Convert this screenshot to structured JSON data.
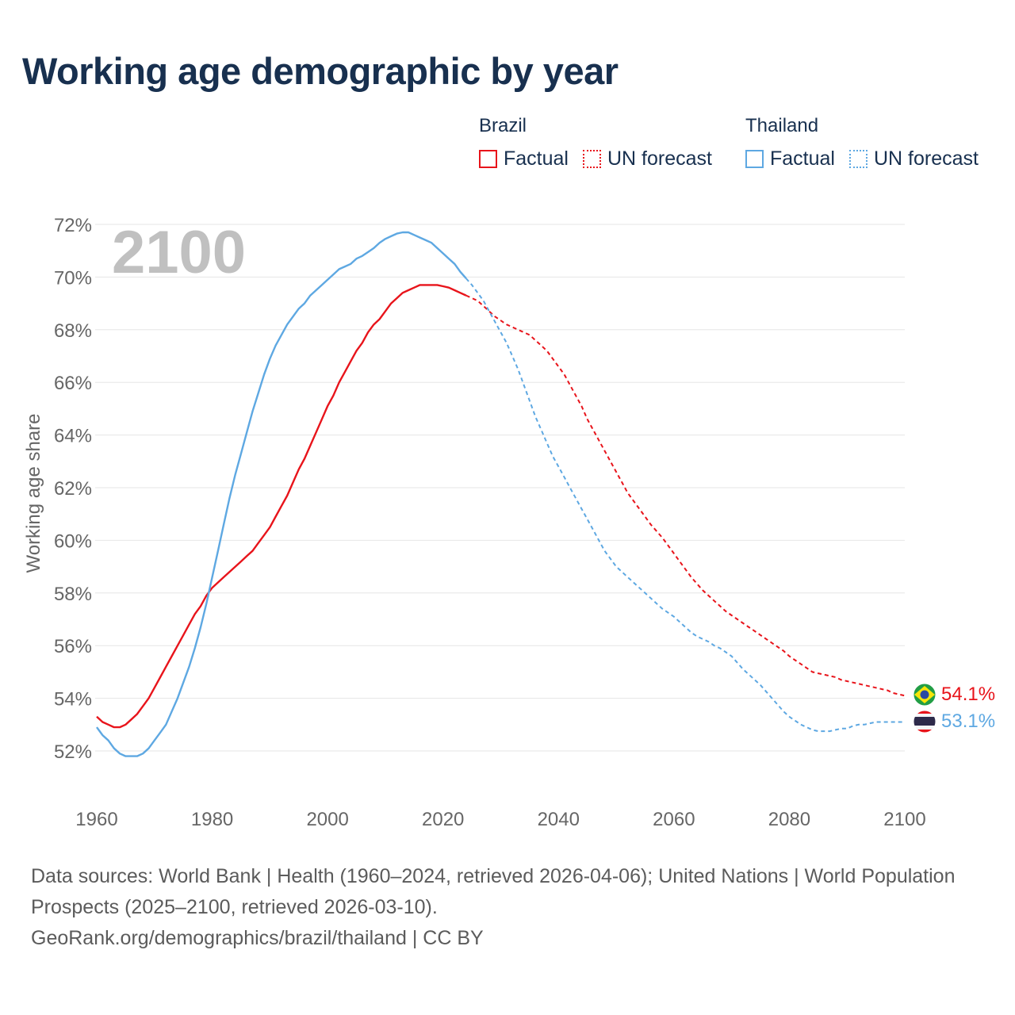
{
  "title": "Working age demographic by year",
  "legend": {
    "groups": [
      {
        "country": "Brazil",
        "factual_label": "Factual",
        "forecast_label": "UN forecast",
        "color": "#e8141b"
      },
      {
        "country": "Thailand",
        "factual_label": "Factual",
        "forecast_label": "UN forecast",
        "color": "#5ea8e2"
      }
    ]
  },
  "chart_data": {
    "type": "line",
    "title": "Working age demographic by year",
    "ylabel": "Working age share",
    "xlabel": "",
    "xlim": [
      1960,
      2100
    ],
    "ylim": [
      51,
      73
    ],
    "x_ticks": [
      1960,
      1980,
      2000,
      2020,
      2040,
      2060,
      2080,
      2100
    ],
    "y_ticks": [
      52,
      54,
      56,
      58,
      60,
      62,
      64,
      66,
      68,
      70,
      72
    ],
    "y_tick_labels": [
      "52%",
      "54%",
      "56%",
      "58%",
      "60%",
      "62%",
      "64%",
      "66%",
      "68%",
      "70%",
      "72%"
    ],
    "x_tick_labels": [
      "1960",
      "1980",
      "2000",
      "2020",
      "2040",
      "2060",
      "2080",
      "2100"
    ],
    "year_watermark": "2100",
    "grid": true,
    "factual_range": [
      1960,
      2024
    ],
    "forecast_range": [
      2025,
      2100
    ],
    "series": [
      {
        "name": "Brazil",
        "color": "#e8141b",
        "end_label": "54.1%",
        "flag": "brazil-flag",
        "points": [
          [
            1960,
            53.3
          ],
          [
            1961,
            53.1
          ],
          [
            1962,
            53.0
          ],
          [
            1963,
            52.9
          ],
          [
            1964,
            52.9
          ],
          [
            1965,
            53.0
          ],
          [
            1966,
            53.2
          ],
          [
            1967,
            53.4
          ],
          [
            1968,
            53.7
          ],
          [
            1969,
            54.0
          ],
          [
            1970,
            54.4
          ],
          [
            1971,
            54.8
          ],
          [
            1972,
            55.2
          ],
          [
            1973,
            55.6
          ],
          [
            1974,
            56.0
          ],
          [
            1975,
            56.4
          ],
          [
            1976,
            56.8
          ],
          [
            1977,
            57.2
          ],
          [
            1978,
            57.5
          ],
          [
            1979,
            57.9
          ],
          [
            1980,
            58.2
          ],
          [
            1981,
            58.4
          ],
          [
            1982,
            58.6
          ],
          [
            1983,
            58.8
          ],
          [
            1984,
            59.0
          ],
          [
            1985,
            59.2
          ],
          [
            1986,
            59.4
          ],
          [
            1987,
            59.6
          ],
          [
            1988,
            59.9
          ],
          [
            1989,
            60.2
          ],
          [
            1990,
            60.5
          ],
          [
            1991,
            60.9
          ],
          [
            1992,
            61.3
          ],
          [
            1993,
            61.7
          ],
          [
            1994,
            62.2
          ],
          [
            1995,
            62.7
          ],
          [
            1996,
            63.1
          ],
          [
            1997,
            63.6
          ],
          [
            1998,
            64.1
          ],
          [
            1999,
            64.6
          ],
          [
            2000,
            65.1
          ],
          [
            2001,
            65.5
          ],
          [
            2002,
            66.0
          ],
          [
            2003,
            66.4
          ],
          [
            2004,
            66.8
          ],
          [
            2005,
            67.2
          ],
          [
            2006,
            67.5
          ],
          [
            2007,
            67.9
          ],
          [
            2008,
            68.2
          ],
          [
            2009,
            68.4
          ],
          [
            2010,
            68.7
          ],
          [
            2011,
            69.0
          ],
          [
            2012,
            69.2
          ],
          [
            2013,
            69.4
          ],
          [
            2014,
            69.5
          ],
          [
            2015,
            69.6
          ],
          [
            2016,
            69.7
          ],
          [
            2017,
            69.7
          ],
          [
            2018,
            69.7
          ],
          [
            2019,
            69.7
          ],
          [
            2020,
            69.65
          ],
          [
            2021,
            69.6
          ],
          [
            2022,
            69.5
          ],
          [
            2023,
            69.4
          ],
          [
            2024,
            69.3
          ],
          [
            2025,
            69.2
          ],
          [
            2026,
            69.1
          ],
          [
            2027,
            68.9
          ],
          [
            2028,
            68.7
          ],
          [
            2029,
            68.5
          ],
          [
            2030,
            68.35
          ],
          [
            2031,
            68.2
          ],
          [
            2032,
            68.1
          ],
          [
            2033,
            68.0
          ],
          [
            2034,
            67.9
          ],
          [
            2035,
            67.8
          ],
          [
            2036,
            67.6
          ],
          [
            2037,
            67.4
          ],
          [
            2038,
            67.2
          ],
          [
            2039,
            66.9
          ],
          [
            2040,
            66.6
          ],
          [
            2041,
            66.3
          ],
          [
            2042,
            65.9
          ],
          [
            2043,
            65.5
          ],
          [
            2044,
            65.1
          ],
          [
            2045,
            64.6
          ],
          [
            2046,
            64.2
          ],
          [
            2047,
            63.8
          ],
          [
            2048,
            63.4
          ],
          [
            2049,
            63.0
          ],
          [
            2050,
            62.6
          ],
          [
            2051,
            62.2
          ],
          [
            2052,
            61.8
          ],
          [
            2053,
            61.5
          ],
          [
            2054,
            61.2
          ],
          [
            2055,
            60.9
          ],
          [
            2056,
            60.6
          ],
          [
            2057,
            60.35
          ],
          [
            2058,
            60.1
          ],
          [
            2059,
            59.8
          ],
          [
            2060,
            59.5
          ],
          [
            2061,
            59.2
          ],
          [
            2062,
            58.9
          ],
          [
            2063,
            58.6
          ],
          [
            2064,
            58.35
          ],
          [
            2065,
            58.1
          ],
          [
            2066,
            57.9
          ],
          [
            2067,
            57.7
          ],
          [
            2068,
            57.5
          ],
          [
            2069,
            57.3
          ],
          [
            2070,
            57.15
          ],
          [
            2071,
            57.0
          ],
          [
            2072,
            56.85
          ],
          [
            2073,
            56.7
          ],
          [
            2074,
            56.55
          ],
          [
            2075,
            56.4
          ],
          [
            2076,
            56.25
          ],
          [
            2077,
            56.1
          ],
          [
            2078,
            55.95
          ],
          [
            2079,
            55.8
          ],
          [
            2080,
            55.6
          ],
          [
            2081,
            55.45
          ],
          [
            2082,
            55.3
          ],
          [
            2083,
            55.15
          ],
          [
            2084,
            55.0
          ],
          [
            2085,
            54.95
          ],
          [
            2086,
            54.9
          ],
          [
            2087,
            54.85
          ],
          [
            2088,
            54.8
          ],
          [
            2089,
            54.7
          ],
          [
            2090,
            54.65
          ],
          [
            2091,
            54.6
          ],
          [
            2092,
            54.55
          ],
          [
            2093,
            54.5
          ],
          [
            2094,
            54.45
          ],
          [
            2095,
            54.4
          ],
          [
            2096,
            54.35
          ],
          [
            2097,
            54.3
          ],
          [
            2098,
            54.2
          ],
          [
            2099,
            54.15
          ],
          [
            2100,
            54.1
          ]
        ]
      },
      {
        "name": "Thailand",
        "color": "#5ea8e2",
        "end_label": "53.1%",
        "flag": "thailand-flag",
        "points": [
          [
            1960,
            52.9
          ],
          [
            1961,
            52.6
          ],
          [
            1962,
            52.4
          ],
          [
            1963,
            52.1
          ],
          [
            1964,
            51.9
          ],
          [
            1965,
            51.8
          ],
          [
            1966,
            51.8
          ],
          [
            1967,
            51.8
          ],
          [
            1968,
            51.9
          ],
          [
            1969,
            52.1
          ],
          [
            1970,
            52.4
          ],
          [
            1971,
            52.7
          ],
          [
            1972,
            53.0
          ],
          [
            1973,
            53.5
          ],
          [
            1974,
            54.0
          ],
          [
            1975,
            54.6
          ],
          [
            1976,
            55.2
          ],
          [
            1977,
            55.9
          ],
          [
            1978,
            56.7
          ],
          [
            1979,
            57.6
          ],
          [
            1980,
            58.6
          ],
          [
            1981,
            59.6
          ],
          [
            1982,
            60.6
          ],
          [
            1983,
            61.6
          ],
          [
            1984,
            62.5
          ],
          [
            1985,
            63.3
          ],
          [
            1986,
            64.1
          ],
          [
            1987,
            64.9
          ],
          [
            1988,
            65.6
          ],
          [
            1989,
            66.3
          ],
          [
            1990,
            66.9
          ],
          [
            1991,
            67.4
          ],
          [
            1992,
            67.8
          ],
          [
            1993,
            68.2
          ],
          [
            1994,
            68.5
          ],
          [
            1995,
            68.8
          ],
          [
            1996,
            69.0
          ],
          [
            1997,
            69.3
          ],
          [
            1998,
            69.5
          ],
          [
            1999,
            69.7
          ],
          [
            2000,
            69.9
          ],
          [
            2001,
            70.1
          ],
          [
            2002,
            70.3
          ],
          [
            2003,
            70.4
          ],
          [
            2004,
            70.5
          ],
          [
            2005,
            70.7
          ],
          [
            2006,
            70.8
          ],
          [
            2007,
            70.95
          ],
          [
            2008,
            71.1
          ],
          [
            2009,
            71.3
          ],
          [
            2010,
            71.45
          ],
          [
            2011,
            71.55
          ],
          [
            2012,
            71.65
          ],
          [
            2013,
            71.7
          ],
          [
            2014,
            71.7
          ],
          [
            2015,
            71.6
          ],
          [
            2016,
            71.5
          ],
          [
            2017,
            71.4
          ],
          [
            2018,
            71.3
          ],
          [
            2019,
            71.1
          ],
          [
            2020,
            70.9
          ],
          [
            2021,
            70.7
          ],
          [
            2022,
            70.5
          ],
          [
            2023,
            70.2
          ],
          [
            2024,
            69.95
          ],
          [
            2025,
            69.7
          ],
          [
            2026,
            69.4
          ],
          [
            2027,
            69.1
          ],
          [
            2028,
            68.7
          ],
          [
            2029,
            68.3
          ],
          [
            2030,
            67.9
          ],
          [
            2031,
            67.5
          ],
          [
            2032,
            67.0
          ],
          [
            2033,
            66.5
          ],
          [
            2034,
            65.9
          ],
          [
            2035,
            65.3
          ],
          [
            2036,
            64.7
          ],
          [
            2037,
            64.2
          ],
          [
            2038,
            63.7
          ],
          [
            2039,
            63.2
          ],
          [
            2040,
            62.8
          ],
          [
            2041,
            62.4
          ],
          [
            2042,
            62.0
          ],
          [
            2043,
            61.6
          ],
          [
            2044,
            61.2
          ],
          [
            2045,
            60.8
          ],
          [
            2046,
            60.4
          ],
          [
            2047,
            60.0
          ],
          [
            2048,
            59.6
          ],
          [
            2049,
            59.3
          ],
          [
            2050,
            59.0
          ],
          [
            2051,
            58.8
          ],
          [
            2052,
            58.6
          ],
          [
            2053,
            58.4
          ],
          [
            2054,
            58.2
          ],
          [
            2055,
            58.0
          ],
          [
            2056,
            57.8
          ],
          [
            2057,
            57.6
          ],
          [
            2058,
            57.4
          ],
          [
            2059,
            57.25
          ],
          [
            2060,
            57.1
          ],
          [
            2061,
            56.9
          ],
          [
            2062,
            56.7
          ],
          [
            2063,
            56.5
          ],
          [
            2064,
            56.35
          ],
          [
            2065,
            56.25
          ],
          [
            2066,
            56.15
          ],
          [
            2067,
            56.0
          ],
          [
            2068,
            55.9
          ],
          [
            2069,
            55.75
          ],
          [
            2070,
            55.6
          ],
          [
            2071,
            55.35
          ],
          [
            2072,
            55.1
          ],
          [
            2073,
            54.9
          ],
          [
            2074,
            54.7
          ],
          [
            2075,
            54.5
          ],
          [
            2076,
            54.25
          ],
          [
            2077,
            54.0
          ],
          [
            2078,
            53.75
          ],
          [
            2079,
            53.5
          ],
          [
            2080,
            53.3
          ],
          [
            2081,
            53.15
          ],
          [
            2082,
            53.0
          ],
          [
            2083,
            52.9
          ],
          [
            2084,
            52.8
          ],
          [
            2085,
            52.75
          ],
          [
            2086,
            52.75
          ],
          [
            2087,
            52.75
          ],
          [
            2088,
            52.8
          ],
          [
            2089,
            52.85
          ],
          [
            2090,
            52.85
          ],
          [
            2091,
            52.95
          ],
          [
            2092,
            53.0
          ],
          [
            2093,
            53.0
          ],
          [
            2094,
            53.05
          ],
          [
            2095,
            53.1
          ],
          [
            2096,
            53.1
          ],
          [
            2097,
            53.1
          ],
          [
            2098,
            53.1
          ],
          [
            2099,
            53.1
          ],
          [
            2100,
            53.1
          ]
        ]
      }
    ]
  },
  "sources": {
    "line1": "Data sources: World Bank | Health (1960–2024, retrieved 2026-04-06); United Nations | World Population Prospects (2025–2100, retrieved 2026-03-10).",
    "line2": "GeoRank.org/demographics/brazil/thailand | CC BY"
  }
}
